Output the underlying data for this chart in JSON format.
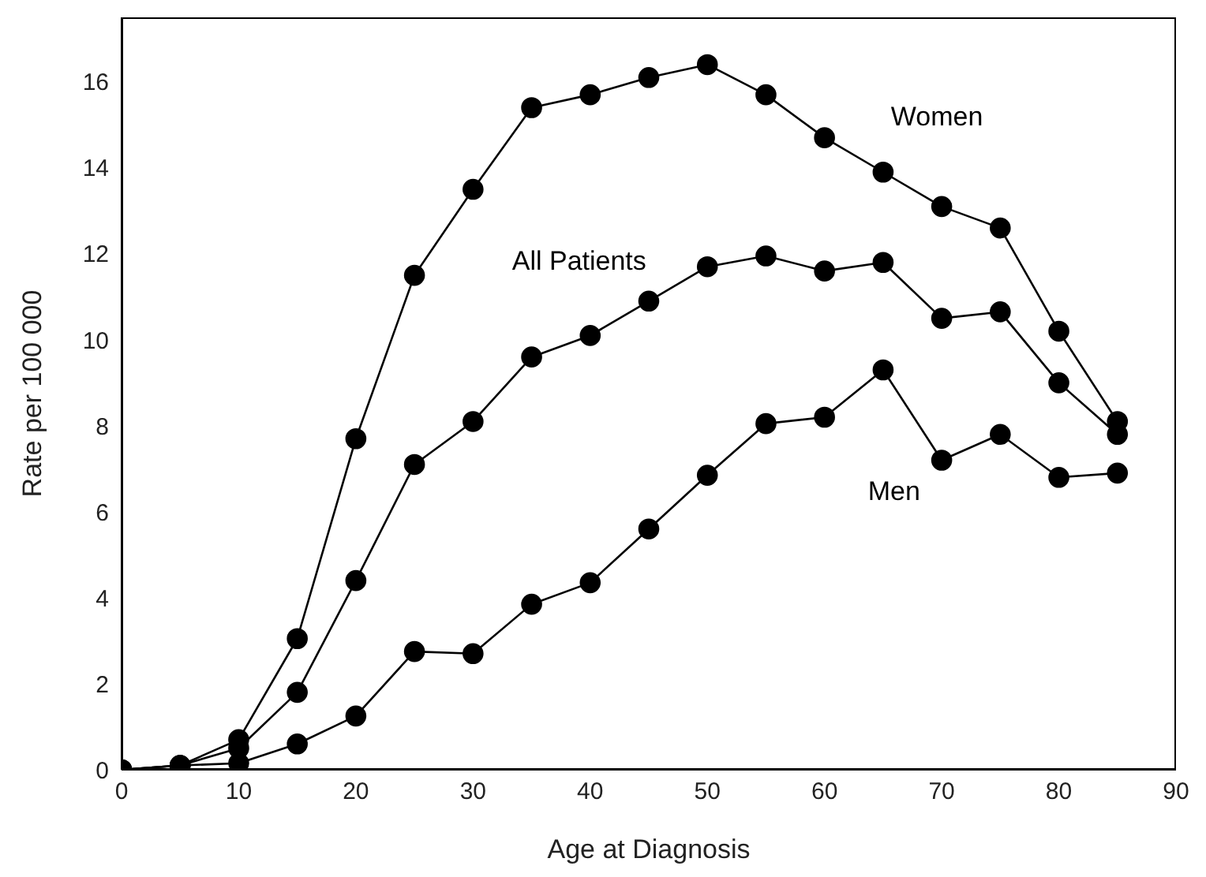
{
  "chart_data": {
    "type": "line",
    "xlabel": "Age at Diagnosis",
    "ylabel": "Rate per 100 000",
    "x": [
      0,
      5,
      10,
      15,
      20,
      25,
      30,
      35,
      40,
      45,
      50,
      55,
      60,
      65,
      70,
      75,
      80,
      85
    ],
    "series": [
      {
        "name": "Women",
        "color": "#000000",
        "values": [
          0,
          0.1,
          0.7,
          3.05,
          7.7,
          11.5,
          13.5,
          15.4,
          15.7,
          16.1,
          16.4,
          15.7,
          14.7,
          13.9,
          13.1,
          12.6,
          10.2,
          8.1
        ]
      },
      {
        "name": "All Patients",
        "color": "#000000",
        "values": [
          0,
          0.1,
          0.5,
          1.8,
          4.4,
          7.1,
          8.1,
          9.6,
          10.1,
          10.9,
          11.7,
          11.95,
          11.6,
          11.8,
          10.5,
          10.65,
          9.0,
          7.8
        ]
      },
      {
        "name": "Men",
        "color": "#000000",
        "values": [
          0,
          0.1,
          0.15,
          0.6,
          1.25,
          2.75,
          2.7,
          3.85,
          4.35,
          5.6,
          6.85,
          8.05,
          8.2,
          9.3,
          7.2,
          7.8,
          6.8,
          6.9
        ]
      }
    ],
    "xlim": [
      0,
      90
    ],
    "xticks": [
      0,
      10,
      20,
      30,
      40,
      50,
      60,
      70,
      80,
      90
    ],
    "ylim": [
      0,
      17.5
    ],
    "yticks": [
      0,
      2,
      4,
      6,
      8,
      10,
      12,
      14,
      16
    ],
    "grid": false,
    "legend": false,
    "marker": "circle",
    "line_style": "solid"
  }
}
